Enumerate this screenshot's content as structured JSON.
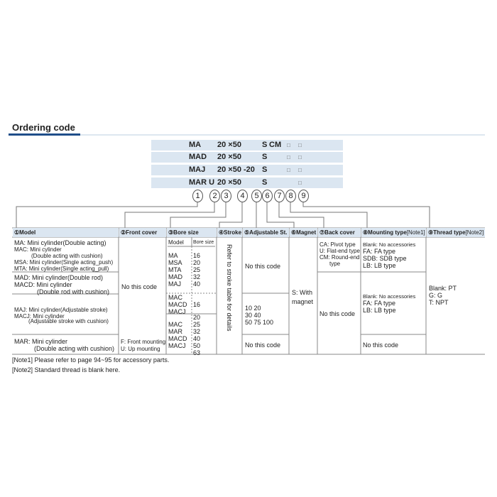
{
  "title": "Ordering code",
  "code_rows": [
    {
      "model": "MA",
      "bore_stroke": "20 ×50",
      "magnet": "S",
      "back": "CM",
      "sq8": "□",
      "sq9": "□"
    },
    {
      "model": "MAD",
      "bore_stroke": "20 ×50",
      "magnet": "S",
      "back": "",
      "sq8": "□",
      "sq9": "□"
    },
    {
      "model": "MAJ",
      "bore_stroke": "20 ×50 -20",
      "magnet": "S",
      "back": "",
      "sq8": "□",
      "sq9": "□"
    },
    {
      "model": "MAR U",
      "bore_stroke": "20 ×50",
      "magnet": "S",
      "back": "",
      "sq8": "",
      "sq9": "□"
    }
  ],
  "positions": [
    "1",
    "2",
    "3",
    "4",
    "5",
    "6",
    "7",
    "8",
    "9"
  ],
  "headers": [
    {
      "num": "①",
      "label": "Model",
      "note": ""
    },
    {
      "num": "②",
      "label": "Front cover",
      "note": ""
    },
    {
      "num": "③",
      "label": "Bore size",
      "note": ""
    },
    {
      "num": "④",
      "label": "Stroke",
      "note": ""
    },
    {
      "num": "⑤",
      "label": "Adjustable St.",
      "note": ""
    },
    {
      "num": "⑥",
      "label": "Magnet",
      "note": ""
    },
    {
      "num": "⑦",
      "label": "Back cover",
      "note": ""
    },
    {
      "num": "⑧",
      "label": "Mounting type",
      "note": "[Note1]"
    },
    {
      "num": "⑨",
      "label": "Thread type",
      "note": "[Note2]"
    }
  ],
  "model": {
    "g1": [
      "MA: Mini cylinder(Double acting)",
      "MAC: Mini cylinder",
      "(Double acting with cushion)",
      "MSA: Mini cylinder(Single acting_push)",
      "MTA: Mini cylinder(Single acting_pull)"
    ],
    "g2": [
      "MAD: Mini cylinder(Double rod)",
      "MACD: Mini cylinder",
      "(Double rod with cushion)"
    ],
    "g3": [
      "MAJ: Mini cylinder(Adjustable stroke)",
      "MACJ: Mini cylinder",
      "(Adjustable stroke with cushion)"
    ],
    "g4": [
      "MAR: Mini cylinder",
      "(Double acting with cushion)"
    ]
  },
  "front_cover": {
    "none": "No this code",
    "f": "F: Front mounting",
    "u": "U: Up mounting"
  },
  "bore": {
    "sub_model": "Model",
    "sub_bore": "Bore size",
    "g1_models": "MA\nMSA\nMTA\nMAD\nMAJ",
    "g1_sizes": "16\n20\n25\n32\n40",
    "g2_models": "MAC\nMACD\nMACJ",
    "g2_sizes": "16",
    "g3_models": "MAC\nMAR\nMACD\nMACJ",
    "g3_sizes": "20\n25\n32\n40\n50\n63"
  },
  "stroke": "Refer to stroke table for details",
  "adjustable": {
    "a": "No this code",
    "b": "10 20\n30 40\n50 75 100",
    "c": "No this code"
  },
  "magnet": "S: With\nmagnet",
  "back_cover": {
    "a": [
      "CA: Pivot type",
      "U: Flat-end type",
      "CM: Round-end",
      "type"
    ],
    "b": "No this code"
  },
  "mounting": {
    "a": [
      "Blank: No accessories",
      "FA: FA type",
      "SDB: SDB type",
      "LB: LB type"
    ],
    "b": [
      "Blank: No accessories",
      "FA: FA type",
      "LB: LB type"
    ],
    "c": "No this code"
  },
  "thread": [
    "Blank: PT",
    "G: G",
    "T: NPT"
  ],
  "notes": [
    "[Note1]  Please refer to page 94~95 for accessory parts.",
    "[Note2]  Standard thread is blank here."
  ],
  "colors": {
    "header_bg": "#dbe6f1",
    "accent": "#1f4e8a"
  }
}
